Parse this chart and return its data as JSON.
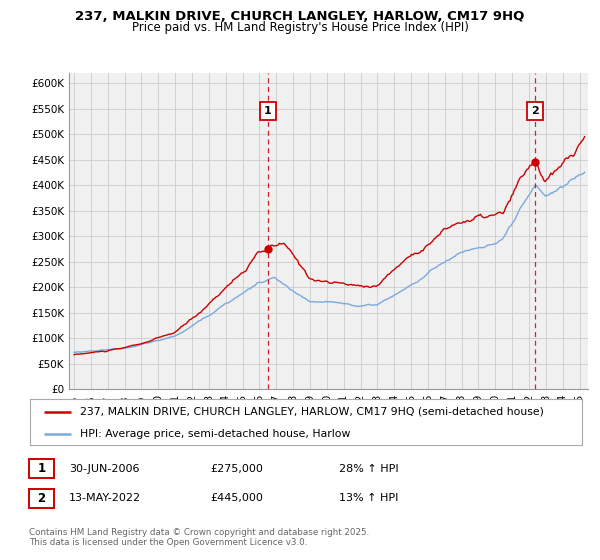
{
  "title_line1": "237, MALKIN DRIVE, CHURCH LANGLEY, HARLOW, CM17 9HQ",
  "title_line2": "Price paid vs. HM Land Registry's House Price Index (HPI)",
  "ylabel_ticks": [
    "£0",
    "£50K",
    "£100K",
    "£150K",
    "£200K",
    "£250K",
    "£300K",
    "£350K",
    "£400K",
    "£450K",
    "£500K",
    "£550K",
    "£600K"
  ],
  "ytick_vals": [
    0,
    50000,
    100000,
    150000,
    200000,
    250000,
    300000,
    350000,
    400000,
    450000,
    500000,
    550000,
    600000
  ],
  "ylim": [
    0,
    620000
  ],
  "xlim_start": 1994.7,
  "xlim_end": 2025.5,
  "xticks": [
    1995,
    1996,
    1997,
    1998,
    1999,
    2000,
    2001,
    2002,
    2003,
    2004,
    2005,
    2006,
    2007,
    2008,
    2009,
    2010,
    2011,
    2012,
    2013,
    2014,
    2015,
    2016,
    2017,
    2018,
    2019,
    2020,
    2021,
    2022,
    2023,
    2024,
    2025
  ],
  "red_color": "#cc0000",
  "blue_color": "#7aaadd",
  "grid_color": "#cccccc",
  "bg_color": "#f0f0f0",
  "vline_color": "#cc0000",
  "marker1_x": 2006.5,
  "marker1_y": 275000,
  "marker2_x": 2022.37,
  "marker2_y": 445000,
  "legend_label_red": "237, MALKIN DRIVE, CHURCH LANGLEY, HARLOW, CM17 9HQ (semi-detached house)",
  "legend_label_blue": "HPI: Average price, semi-detached house, Harlow",
  "table_row1": [
    "1",
    "30-JUN-2006",
    "£275,000",
    "28% ↑ HPI"
  ],
  "table_row2": [
    "2",
    "13-MAY-2022",
    "£445,000",
    "13% ↑ HPI"
  ],
  "footer_text": "Contains HM Land Registry data © Crown copyright and database right 2025.\nThis data is licensed under the Open Government Licence v3.0.",
  "title_fontsize": 9.5,
  "subtitle_fontsize": 8.5,
  "tick_fontsize": 7.5,
  "legend_fontsize": 7.8
}
